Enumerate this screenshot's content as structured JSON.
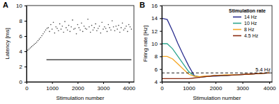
{
  "chart_data": [
    {
      "type": "scatter",
      "title": "A",
      "x_label": "Stimulation number",
      "y_label": "Latency [ms]",
      "xlim": [
        0,
        4200
      ],
      "ylim": [
        0,
        10
      ],
      "xticks": [
        0,
        1000,
        2000,
        3000,
        4000
      ],
      "yticks": [
        0,
        2,
        4,
        6,
        8,
        10
      ],
      "grid": false,
      "series": [
        {
          "color": "#444444",
          "marker": "dot",
          "x": [
            0,
            50,
            100,
            150,
            200,
            250,
            300,
            350,
            400,
            450,
            500,
            550,
            600,
            650,
            700,
            750,
            800,
            850,
            900,
            950,
            1000,
            1050,
            1100,
            1150,
            1200,
            1250,
            1300,
            1350,
            1400,
            1450,
            1500,
            1550,
            1600,
            1650,
            1700,
            1750,
            1800,
            1850,
            1900,
            1950,
            2000,
            2050,
            2100,
            2150,
            2200,
            2250,
            2300,
            2350,
            2400,
            2450,
            2500,
            2550,
            2600,
            2650,
            2700,
            2750,
            2800,
            2850,
            2900,
            2950,
            3000,
            3050,
            3100,
            3150,
            3200,
            3250,
            3300,
            3350,
            3400,
            3450,
            3500,
            3550,
            3600,
            3650,
            3700,
            3750,
            3800,
            3850,
            3900,
            3950,
            4000,
            4050,
            4100
          ],
          "values": [
            4.0,
            4.15,
            4.3,
            4.45,
            4.6,
            4.75,
            4.9,
            5.05,
            5.2,
            5.4,
            5.6,
            5.8,
            6.05,
            6.3,
            6.55,
            6.8,
            7.0,
            7.1,
            6.6,
            7.5,
            6.9,
            7.8,
            6.4,
            7.2,
            7.0,
            6.7,
            7.6,
            6.9,
            7.3,
            6.5,
            7.9,
            7.1,
            6.8,
            7.4,
            6.6,
            7.2,
            8.1,
            6.9,
            7.0,
            6.3,
            7.5,
            7.1,
            6.8,
            7.7,
            6.6,
            7.3,
            7.0,
            6.9,
            8.2,
            7.2,
            6.5,
            7.4,
            6.8,
            7.1,
            7.6,
            6.7,
            7.0,
            7.3,
            6.4,
            7.8,
            6.9,
            7.2,
            7.0,
            6.6,
            7.5,
            7.1,
            6.8,
            8.0,
            7.2,
            6.7,
            7.3,
            6.9,
            7.4,
            6.5,
            7.1,
            7.7,
            6.8,
            7.0,
            7.3,
            6.6,
            7.5,
            7.2,
            6.9
          ]
        },
        {
          "type": "line",
          "color": "#222222",
          "line_style": "solid",
          "x": [
            780,
            4100
          ],
          "values": [
            2.9,
            2.9
          ]
        }
      ]
    },
    {
      "type": "line",
      "title": "B",
      "x_label": "Stimulation number",
      "y_label": "Firing rate [Hz]",
      "xlim": [
        0,
        4100
      ],
      "ylim": [
        4,
        16
      ],
      "xticks": [
        0,
        1000,
        2000,
        3000,
        4000
      ],
      "yticks": [
        4,
        6,
        8,
        10,
        12,
        14,
        16
      ],
      "grid": false,
      "legend": "upper right",
      "legend_title": "Stimulation rate",
      "x": [
        0,
        200,
        400,
        600,
        800,
        1000,
        1200,
        1400,
        1600,
        1800,
        2000,
        2400,
        2800,
        3200,
        3600,
        4000
      ],
      "series": [
        {
          "name": "14 Hz",
          "color": "#2b2f8f",
          "values": [
            14,
            13.8,
            12,
            10,
            8.2,
            6.5,
            5.0,
            4.7,
            4.8,
            4.9,
            4.9,
            5.0,
            5.1,
            5.2,
            5.3,
            5.4
          ]
        },
        {
          "name": "10 Hz",
          "color": "#2ca58d",
          "values": [
            10,
            10,
            9.2,
            8,
            6.8,
            5.6,
            4.9,
            4.8,
            4.8,
            4.9,
            5.0,
            5.0,
            5.1,
            5.2,
            5.3,
            5.4
          ]
        },
        {
          "name": "8 Hz",
          "color": "#f5a623",
          "values": [
            8,
            8,
            7.6,
            6.8,
            6.0,
            5.2,
            4.9,
            4.8,
            4.9,
            4.9,
            5.0,
            5.1,
            5.1,
            5.2,
            5.3,
            5.4
          ]
        },
        {
          "name": "4.5 Hz",
          "color": "#8b2a0e",
          "values": [
            4.5,
            4.5,
            4.5,
            4.5,
            4.5,
            4.5,
            4.6,
            4.7,
            4.8,
            4.9,
            5.0,
            5.0,
            5.1,
            5.2,
            5.3,
            5.4
          ]
        }
      ],
      "annotations": [
        {
          "text": "5.4 Hz",
          "y": 5.4,
          "line_style": "dashed"
        }
      ]
    }
  ]
}
